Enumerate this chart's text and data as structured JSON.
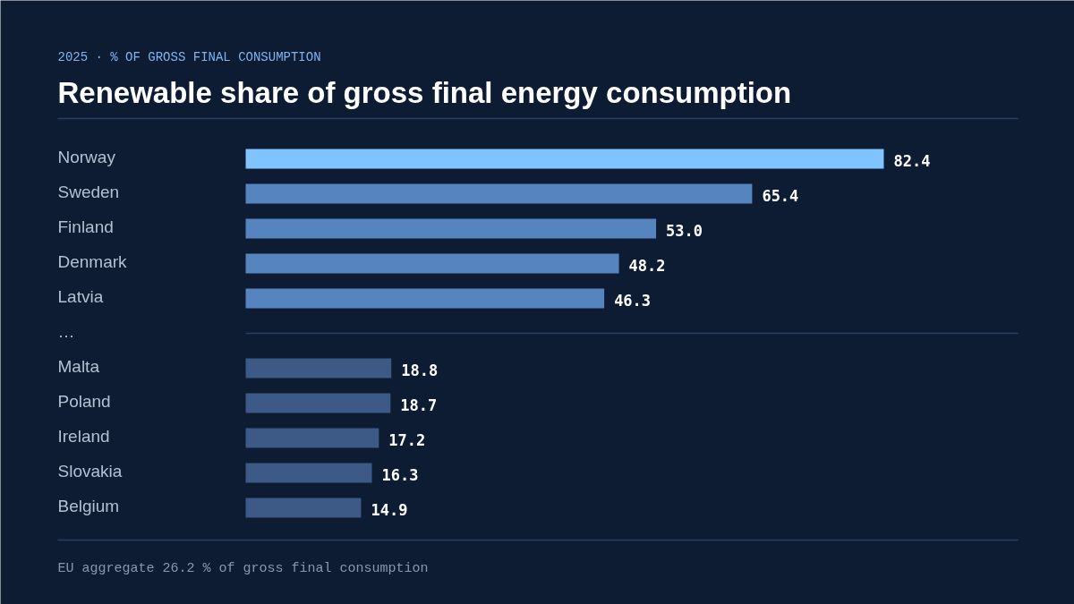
{
  "chart_data": {
    "type": "bar",
    "orientation": "horizontal",
    "title": "Renewable share of gross final energy consumption",
    "subtitle": "2025  ·  % OF GROSS FINAL CONSUMPTION",
    "categories": [
      "Norway",
      "Sweden",
      "Finland",
      "Denmark",
      "Latvia",
      "…",
      "Malta",
      "Poland",
      "Ireland",
      "Slovakia",
      "Belgium"
    ],
    "values": [
      82.4,
      65.4,
      53.0,
      48.2,
      46.3,
      null,
      18.8,
      18.7,
      17.2,
      16.3,
      14.9
    ],
    "colors": [
      "#7fc4ff",
      "#5584bf",
      "#5584bf",
      "#5584bf",
      "#5584bf",
      null,
      "#3d5a86",
      "#3d5a86",
      "#3d5a86",
      "#3d5a86",
      "#3d5a86"
    ],
    "value_labels": [
      "82.4",
      "65.4",
      "53.0",
      "48.2",
      "46.3",
      null,
      "18.8",
      "18.7",
      "17.2",
      "16.3",
      "14.9"
    ],
    "annotations": [
      "EU aggregate  26.2  % of gross final consumption"
    ],
    "ref_lines": [
      {
        "axis": "y",
        "value": "…",
        "color": "#2c3e62"
      }
    ],
    "grid": false
  }
}
